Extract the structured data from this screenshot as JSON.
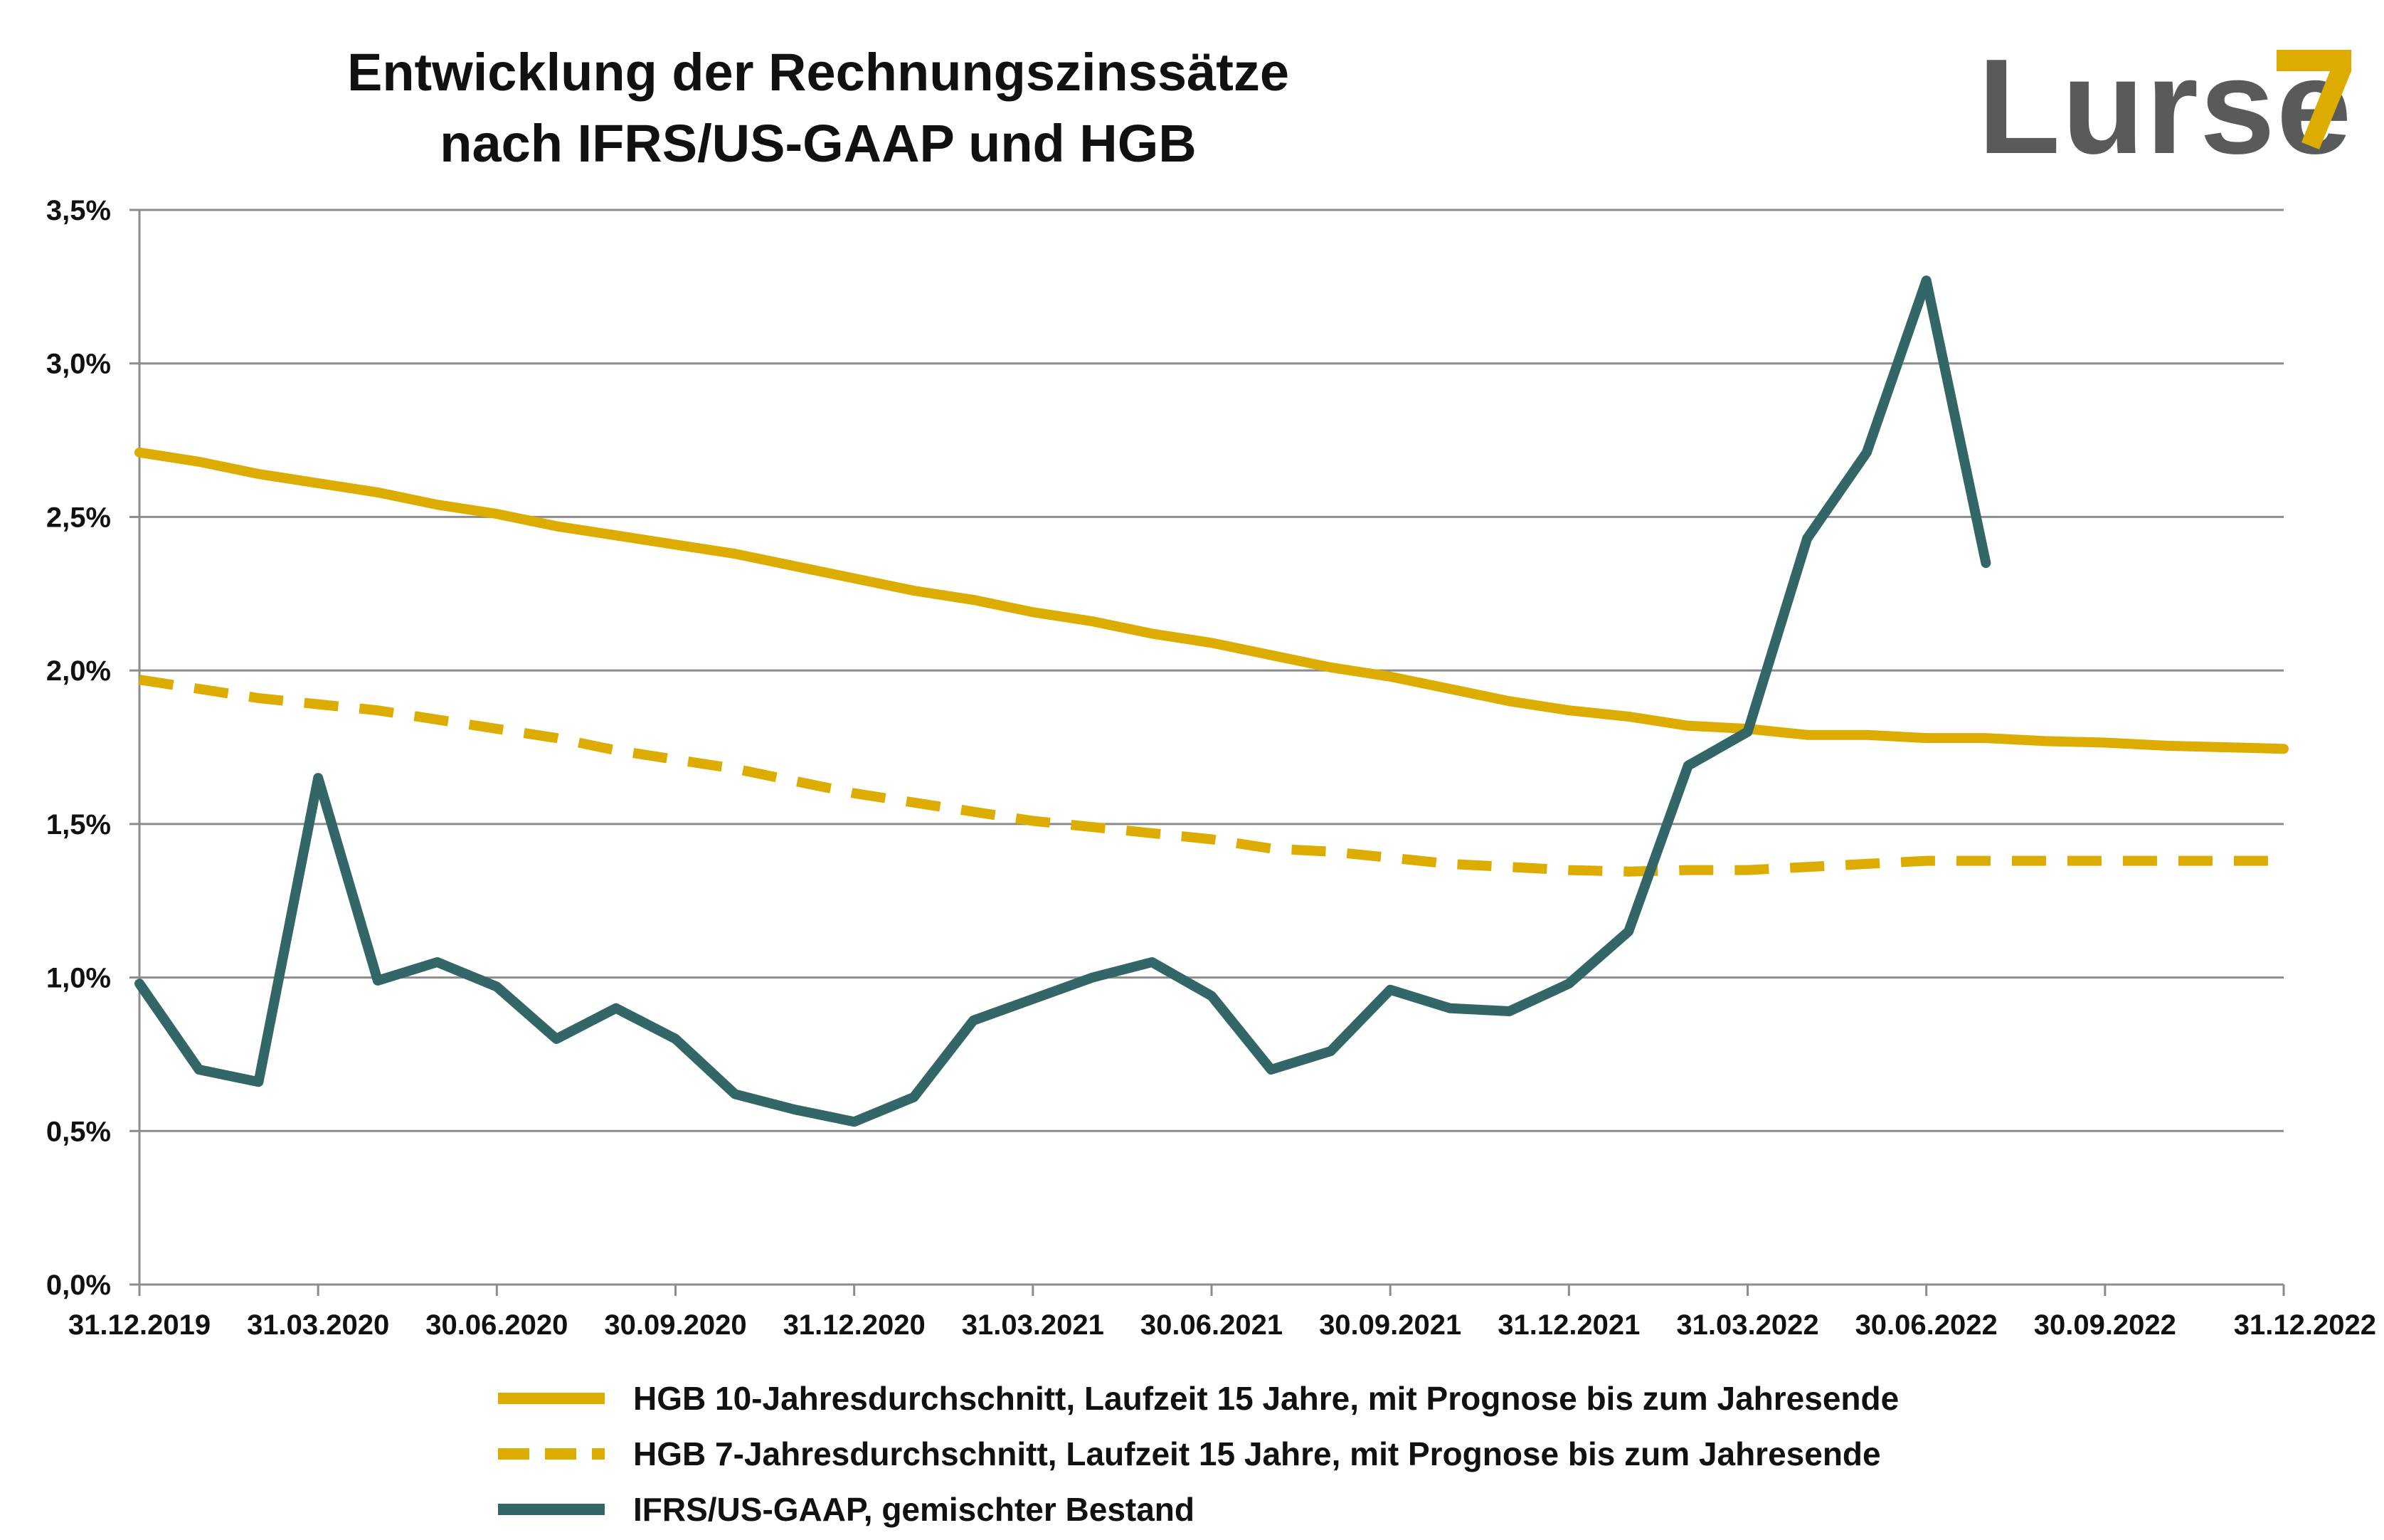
{
  "chart_data": {
    "type": "line",
    "title": "Entwicklung der Rechnungszinssätze nach IFRS/US-GAAP und HGB",
    "title_lines": [
      "Entwicklung der Rechnungszinssätze",
      "nach IFRS/US-GAAP und HGB"
    ],
    "ylim": [
      0,
      3.5
    ],
    "ytick_values": [
      0,
      0.5,
      1.0,
      1.5,
      2.0,
      2.5,
      3.0,
      3.5
    ],
    "ytick_labels": [
      "0,0%",
      "0,5%",
      "1,0%",
      "1,5%",
      "2,0%",
      "2,5%",
      "3,0%",
      "3,5%"
    ],
    "x_points": 37,
    "xtick_labels": [
      "31.12.2019",
      "31.03.2020",
      "30.06.2020",
      "30.09.2020",
      "31.12.2020",
      "31.03.2021",
      "30.06.2021",
      "30.09.2021",
      "31.12.2021",
      "31.03.2022",
      "30.06.2022",
      "30.09.2022",
      "31.12.2022"
    ],
    "xtick_month_index": [
      0,
      3,
      6,
      9,
      12,
      15,
      18,
      21,
      24,
      27,
      30,
      33,
      36
    ],
    "legend_position": "bottom",
    "series": [
      {
        "name": "HGB 10-Jahresdurchschnitt, Laufzeit 15 Jahre, mit Prognose bis zum Jahresende",
        "color": "#dcac00",
        "style": "solid",
        "values": [
          2.71,
          2.68,
          2.64,
          2.61,
          2.58,
          2.54,
          2.51,
          2.47,
          2.44,
          2.41,
          2.38,
          2.34,
          2.3,
          2.26,
          2.23,
          2.19,
          2.16,
          2.12,
          2.09,
          2.05,
          2.01,
          1.98,
          1.94,
          1.9,
          1.87,
          1.85,
          1.82,
          1.81,
          1.79,
          1.79,
          1.78,
          1.78,
          1.77,
          1.765,
          1.755,
          1.75,
          1.745
        ]
      },
      {
        "name": "HGB 7-Jahresdurchschnitt, Laufzeit 15 Jahre, mit Prognose bis zum Jahresende",
        "color": "#dcac00",
        "style": "dashed",
        "values": [
          1.97,
          1.94,
          1.91,
          1.89,
          1.87,
          1.84,
          1.81,
          1.78,
          1.74,
          1.71,
          1.68,
          1.64,
          1.6,
          1.57,
          1.54,
          1.51,
          1.49,
          1.47,
          1.45,
          1.42,
          1.41,
          1.39,
          1.37,
          1.36,
          1.35,
          1.345,
          1.35,
          1.35,
          1.36,
          1.37,
          1.38,
          1.38,
          1.38,
          1.38,
          1.38,
          1.38,
          1.38
        ]
      },
      {
        "name": "IFRS/US-GAAP, gemischter Bestand",
        "color": "#336666",
        "style": "solid",
        "values": [
          0.98,
          0.7,
          0.66,
          1.65,
          0.99,
          1.05,
          0.97,
          0.8,
          0.9,
          0.8,
          0.62,
          0.57,
          0.53,
          0.61,
          0.86,
          0.93,
          1.0,
          1.05,
          0.94,
          0.7,
          0.76,
          0.96,
          0.9,
          0.89,
          0.98,
          1.15,
          1.69,
          1.8,
          2.43,
          2.71,
          3.27,
          2.35
        ]
      }
    ]
  },
  "logo": {
    "text": "Lurse",
    "brand_color": "#dcac00",
    "text_color": "#595a5c"
  },
  "colors": {
    "grid": "#8c8c8c",
    "axis": "#8c8c8c"
  }
}
